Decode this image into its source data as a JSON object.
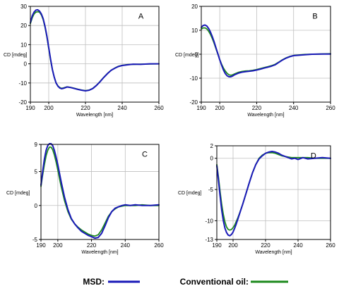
{
  "colors": {
    "msd": "#1a1ab8",
    "oil": "#1e8a1e",
    "grid": "#bfbfbf",
    "frame": "#000000"
  },
  "legend": {
    "items": [
      {
        "key": "msd",
        "label": "MSD:"
      },
      {
        "key": "oil",
        "label": "Conventional oil:"
      }
    ]
  },
  "chart_data": [
    {
      "type": "line",
      "panel": "A",
      "xlabel": "Wavelength [nm]",
      "ylabel": "CD [mdeg]",
      "xlim": [
        190,
        260
      ],
      "ylim": [
        -20,
        30
      ],
      "xticks": [
        190,
        200,
        220,
        240,
        260
      ],
      "yticks": [
        30,
        20,
        10,
        0,
        -10,
        -20
      ],
      "grid": true,
      "series": [
        {
          "key": "oil",
          "x": [
            190,
            191,
            192,
            193,
            194,
            195,
            196,
            197,
            198,
            199,
            200,
            201,
            202,
            203,
            204,
            205,
            206,
            207,
            208,
            210,
            212,
            214,
            216,
            218,
            220,
            222,
            224,
            226,
            228,
            230,
            232,
            234,
            236,
            238,
            240,
            243,
            246,
            250,
            255,
            260
          ],
          "y": [
            21,
            24,
            26,
            27,
            27.2,
            27,
            25.5,
            23,
            19,
            14,
            8,
            2,
            -3,
            -7,
            -10,
            -11.5,
            -12.4,
            -12.8,
            -12.6,
            -12.0,
            -12.3,
            -12.8,
            -13.3,
            -13.7,
            -14.0,
            -13.7,
            -12.8,
            -11.2,
            -9.2,
            -7.0,
            -5.0,
            -3.4,
            -2.2,
            -1.3,
            -0.8,
            -0.4,
            -0.3,
            -0.2,
            -0.1,
            0
          ]
        },
        {
          "key": "msd",
          "x": [
            190,
            191,
            192,
            193,
            194,
            195,
            196,
            197,
            198,
            199,
            200,
            201,
            202,
            203,
            204,
            205,
            206,
            207,
            208,
            210,
            212,
            214,
            216,
            218,
            220,
            222,
            224,
            226,
            228,
            230,
            232,
            234,
            236,
            238,
            240,
            243,
            246,
            250,
            255,
            260
          ],
          "y": [
            21.5,
            25,
            27,
            28,
            28.2,
            27.5,
            26,
            23.5,
            19.5,
            14.5,
            8.5,
            2.5,
            -3,
            -7,
            -10,
            -11.7,
            -12.6,
            -13.0,
            -12.8,
            -12.1,
            -12.4,
            -12.9,
            -13.4,
            -13.8,
            -14.1,
            -13.8,
            -12.9,
            -11.3,
            -9.3,
            -7.1,
            -5.1,
            -3.4,
            -2.3,
            -1.4,
            -0.9,
            -0.5,
            -0.2,
            -0.3,
            0,
            0
          ]
        }
      ]
    },
    {
      "type": "line",
      "panel": "B",
      "xlabel": "Wavelength [nm]",
      "ylabel": "CD [mdeg]",
      "xlim": [
        190,
        260
      ],
      "ylim": [
        -20,
        20
      ],
      "xticks": [
        190,
        200,
        220,
        240,
        260
      ],
      "yticks": [
        20,
        10,
        0,
        -10,
        -20
      ],
      "grid": true,
      "series": [
        {
          "key": "oil",
          "x": [
            190,
            191,
            192,
            193,
            194,
            195,
            196,
            197,
            198,
            199,
            200,
            201,
            202,
            203,
            204,
            205,
            206,
            207,
            208,
            210,
            212,
            214,
            216,
            218,
            220,
            222,
            224,
            226,
            228,
            230,
            232,
            234,
            236,
            238,
            240,
            243,
            246,
            250,
            255,
            260
          ],
          "y": [
            10.5,
            11,
            11,
            10.6,
            9.6,
            8.2,
            6.5,
            4.5,
            2.2,
            0,
            -2.2,
            -4.2,
            -5.8,
            -7,
            -8,
            -8.6,
            -8.8,
            -8.6,
            -8.2,
            -7.6,
            -7.2,
            -7.0,
            -6.9,
            -6.7,
            -6.4,
            -6.0,
            -5.6,
            -5.2,
            -4.8,
            -4.2,
            -3.3,
            -2.3,
            -1.5,
            -0.9,
            -0.5,
            -0.3,
            -0.1,
            0,
            0.1,
            0.2
          ]
        },
        {
          "key": "msd",
          "x": [
            190,
            191,
            192,
            193,
            194,
            195,
            196,
            197,
            198,
            199,
            200,
            201,
            202,
            203,
            204,
            205,
            206,
            207,
            208,
            210,
            212,
            214,
            216,
            218,
            220,
            222,
            224,
            226,
            228,
            230,
            232,
            234,
            236,
            238,
            240,
            243,
            246,
            250,
            255,
            260
          ],
          "y": [
            11.2,
            12,
            12.2,
            11.8,
            10.7,
            9.2,
            7.3,
            5.1,
            2.6,
            0.2,
            -2.3,
            -4.6,
            -6.6,
            -8.1,
            -9.0,
            -9.4,
            -9.4,
            -9.1,
            -8.6,
            -7.9,
            -7.5,
            -7.3,
            -7.1,
            -6.9,
            -6.6,
            -6.2,
            -5.8,
            -5.4,
            -5.0,
            -4.4,
            -3.4,
            -2.4,
            -1.6,
            -1.0,
            -0.6,
            -0.4,
            -0.2,
            0,
            0.1,
            0.1
          ]
        }
      ]
    },
    {
      "type": "line",
      "panel": "C",
      "xlabel": "Wavelength [nm]",
      "ylabel": "CD [mdeg]",
      "xlim": [
        190,
        260
      ],
      "ylim": [
        -5,
        9
      ],
      "xticks": [
        190,
        200,
        220,
        240,
        260
      ],
      "yticks": [
        9,
        5,
        0,
        -5
      ],
      "grid": true,
      "series": [
        {
          "key": "oil",
          "x": [
            190,
            191,
            192,
            193,
            194,
            195,
            196,
            197,
            198,
            199,
            200,
            202,
            204,
            206,
            208,
            210,
            212,
            214,
            216,
            218,
            220,
            222,
            224,
            226,
            228,
            230,
            232,
            234,
            236,
            238,
            240,
            243,
            246,
            250,
            255,
            260
          ],
          "y": [
            2.8,
            4.5,
            6,
            7.3,
            8.1,
            8.6,
            8.6,
            8.2,
            7.4,
            6.4,
            5.2,
            2.8,
            0.7,
            -0.9,
            -2.0,
            -2.7,
            -3.2,
            -3.6,
            -3.9,
            -4.2,
            -4.4,
            -4.5,
            -4.3,
            -3.6,
            -2.6,
            -1.6,
            -0.9,
            -0.5,
            -0.2,
            -0.1,
            0,
            0,
            0,
            0.1,
            0,
            0
          ]
        },
        {
          "key": "msd",
          "x": [
            190,
            191,
            192,
            193,
            194,
            195,
            196,
            197,
            198,
            199,
            200,
            202,
            204,
            206,
            208,
            210,
            212,
            214,
            216,
            218,
            220,
            222,
            224,
            226,
            228,
            230,
            232,
            234,
            236,
            238,
            240,
            243,
            246,
            250,
            255,
            260
          ],
          "y": [
            3,
            5,
            6.8,
            8.1,
            8.8,
            9.1,
            9.1,
            8.8,
            8.1,
            7.1,
            6,
            3.5,
            1.2,
            -0.6,
            -1.9,
            -2.7,
            -3.3,
            -3.8,
            -4.1,
            -4.4,
            -4.6,
            -4.8,
            -4.7,
            -4.1,
            -3.0,
            -1.8,
            -0.9,
            -0.4,
            -0.2,
            0,
            0.1,
            0,
            0.1,
            0,
            0,
            0.1
          ]
        }
      ]
    },
    {
      "type": "line",
      "panel": "D",
      "xlabel": "Wavelength [nm]",
      "ylabel": "CD [mdeg]",
      "xlim": [
        190,
        260
      ],
      "ylim": [
        -13,
        2
      ],
      "xticks": [
        190,
        200,
        220,
        240,
        260
      ],
      "yticks": [
        2,
        0,
        -5,
        -10,
        -13
      ],
      "grid": true,
      "series": [
        {
          "key": "oil",
          "x": [
            190,
            191,
            192,
            193,
            194,
            195,
            196,
            197,
            198,
            199,
            200,
            201,
            202,
            203,
            204,
            206,
            208,
            210,
            212,
            214,
            216,
            218,
            220,
            222,
            224,
            226,
            228,
            230,
            232,
            234,
            236,
            238,
            240,
            243,
            246,
            250,
            255,
            260
          ],
          "y": [
            -1,
            -3,
            -5.3,
            -7.4,
            -9,
            -10.2,
            -11,
            -11.4,
            -11.5,
            -11.4,
            -11.1,
            -10.7,
            -10.1,
            -9.5,
            -8.8,
            -7.3,
            -5.6,
            -3.9,
            -2.3,
            -1.0,
            0,
            0.5,
            0.8,
            0.9,
            0.9,
            0.8,
            0.6,
            0.4,
            0.3,
            0.2,
            0.1,
            0.1,
            0.1,
            0.1,
            0.1,
            0,
            0,
            0
          ]
        },
        {
          "key": "msd",
          "x": [
            190,
            191,
            192,
            193,
            194,
            195,
            196,
            197,
            198,
            199,
            200,
            201,
            202,
            203,
            204,
            206,
            208,
            210,
            212,
            214,
            216,
            218,
            220,
            222,
            224,
            226,
            228,
            230,
            232,
            234,
            236,
            238,
            240,
            243,
            246,
            250,
            255,
            260
          ],
          "y": [
            -1.2,
            -3.5,
            -6,
            -8.3,
            -10,
            -11.2,
            -11.9,
            -12.3,
            -12.4,
            -12.2,
            -11.8,
            -11.2,
            -10.5,
            -9.7,
            -8.9,
            -7.3,
            -5.6,
            -3.9,
            -2.3,
            -1.0,
            -0.1,
            0.4,
            0.8,
            1.0,
            1.1,
            1.0,
            0.8,
            0.5,
            0.3,
            0.1,
            -0.1,
            0,
            -0.2,
            0.1,
            -0.1,
            0,
            0.1,
            0
          ]
        }
      ]
    }
  ]
}
